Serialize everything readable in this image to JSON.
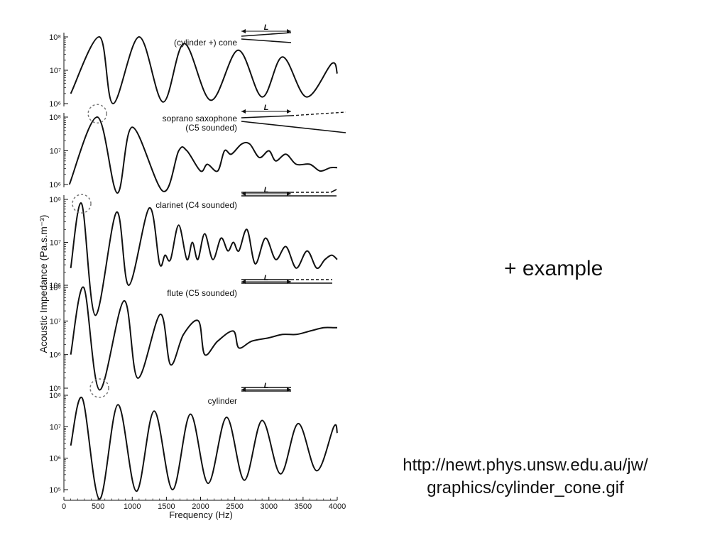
{
  "slide": {
    "example_text": "+ example",
    "url_line1": "http://newt.phys.unsw.edu.au/jw/",
    "url_line2": "graphics/cylinder_cone.gif"
  },
  "colors": {
    "curve": "#111111",
    "circle": "#777777",
    "text": "#111111"
  },
  "chart_data": {
    "type": "line",
    "ylabel": "Acoustic Impedance (Pa.s.m⁻³)",
    "xlabel": "Frequency (Hz)",
    "xlim": [
      0,
      4000
    ],
    "x_ticks": [
      0,
      500,
      1000,
      1500,
      2000,
      2500,
      3000,
      3500,
      4000
    ],
    "y_scale": "log",
    "geometry_label": "L",
    "panels": [
      {
        "label": "(cylinder +) cone",
        "label_lines": [
          "(cylinder +) cone"
        ],
        "ylim_exp": [
          6,
          8
        ],
        "y_tick_labels": [
          "10⁸",
          "10⁷",
          "10⁶"
        ],
        "y_tick_exp": [
          8,
          7,
          6
        ],
        "shape": "cone",
        "circles": [],
        "points": [
          [
            100,
            6.3
          ],
          [
            520,
            8.0
          ],
          [
            720,
            6.0
          ],
          [
            1100,
            8.0
          ],
          [
            1450,
            6.05
          ],
          [
            1760,
            7.8
          ],
          [
            2150,
            6.1
          ],
          [
            2550,
            7.6
          ],
          [
            2900,
            6.2
          ],
          [
            3200,
            7.4
          ],
          [
            3550,
            6.2
          ],
          [
            3920,
            7.2
          ],
          [
            4000,
            6.9
          ]
        ]
      },
      {
        "label": "soprano saxophone (C5 sounded)",
        "label_lines": [
          "soprano saxophone",
          "(C5 sounded)"
        ],
        "ylim_exp": [
          6,
          8
        ],
        "y_tick_labels": [
          "10⁸",
          "10⁷",
          "10⁶"
        ],
        "y_tick_exp": [
          8,
          7,
          6
        ],
        "shape": "sax",
        "circles": [
          [
            490,
            8.1
          ]
        ],
        "points": [
          [
            80,
            6.0
          ],
          [
            490,
            8.0
          ],
          [
            780,
            5.75
          ],
          [
            1000,
            7.7
          ],
          [
            1450,
            5.8
          ],
          [
            1680,
            7.0
          ],
          [
            1800,
            7.0
          ],
          [
            2000,
            6.4
          ],
          [
            2100,
            6.6
          ],
          [
            2250,
            6.4
          ],
          [
            2350,
            7.0
          ],
          [
            2450,
            6.9
          ],
          [
            2600,
            7.2
          ],
          [
            2720,
            7.2
          ],
          [
            2860,
            6.8
          ],
          [
            3000,
            7.0
          ],
          [
            3100,
            6.7
          ],
          [
            3250,
            6.9
          ],
          [
            3400,
            6.6
          ],
          [
            3600,
            6.6
          ],
          [
            3750,
            6.4
          ],
          [
            3900,
            6.5
          ],
          [
            4000,
            6.5
          ]
        ]
      },
      {
        "label": "clarinet (C4 sounded)",
        "label_lines": [
          "clarinet (C4 sounded)"
        ],
        "ylim_exp": [
          6,
          8
        ],
        "y_tick_labels": [
          "10⁸",
          "10⁷",
          "10⁶"
        ],
        "y_tick_exp": [
          8,
          7,
          6
        ],
        "shape": "clarinet",
        "circles": [
          [
            260,
            7.9
          ]
        ],
        "points": [
          [
            100,
            6.4
          ],
          [
            260,
            7.9
          ],
          [
            460,
            5.3
          ],
          [
            770,
            7.7
          ],
          [
            950,
            6.0
          ],
          [
            1250,
            7.8
          ],
          [
            1400,
            6.5
          ],
          [
            1480,
            6.7
          ],
          [
            1560,
            6.6
          ],
          [
            1680,
            7.4
          ],
          [
            1800,
            6.6
          ],
          [
            1880,
            7.0
          ],
          [
            1960,
            6.6
          ],
          [
            2060,
            7.2
          ],
          [
            2180,
            6.6
          ],
          [
            2300,
            7.1
          ],
          [
            2400,
            6.8
          ],
          [
            2480,
            7.0
          ],
          [
            2560,
            6.8
          ],
          [
            2680,
            7.3
          ],
          [
            2800,
            6.5
          ],
          [
            2950,
            7.1
          ],
          [
            3100,
            6.6
          ],
          [
            3250,
            6.9
          ],
          [
            3400,
            6.4
          ],
          [
            3560,
            6.8
          ],
          [
            3700,
            6.4
          ],
          [
            3820,
            6.6
          ],
          [
            3920,
            6.7
          ],
          [
            4000,
            6.6
          ]
        ]
      },
      {
        "label": "flute (C5 sounded)",
        "label_lines": [
          "flute (C5 sounded)"
        ],
        "ylim_exp": [
          5,
          8
        ],
        "y_tick_labels": [
          "10⁸",
          "10⁷",
          "10⁶",
          "10⁵"
        ],
        "y_tick_exp": [
          8,
          7,
          6,
          5
        ],
        "shape": "flute",
        "circles": [
          [
            520,
            5.0
          ]
        ],
        "points": [
          [
            100,
            6.0
          ],
          [
            290,
            8.0
          ],
          [
            520,
            4.95
          ],
          [
            880,
            7.6
          ],
          [
            1080,
            5.3
          ],
          [
            1410,
            7.2
          ],
          [
            1560,
            5.7
          ],
          [
            1750,
            6.6
          ],
          [
            1970,
            7.0
          ],
          [
            2060,
            6.0
          ],
          [
            2250,
            6.4
          ],
          [
            2480,
            6.7
          ],
          [
            2560,
            6.2
          ],
          [
            2750,
            6.4
          ],
          [
            3000,
            6.5
          ],
          [
            3200,
            6.6
          ],
          [
            3400,
            6.6
          ],
          [
            3600,
            6.7
          ],
          [
            3800,
            6.8
          ],
          [
            3950,
            6.8
          ],
          [
            4000,
            6.8
          ]
        ]
      },
      {
        "label": "cylinder",
        "label_lines": [
          "cylinder"
        ],
        "ylim_exp": [
          5,
          8
        ],
        "y_tick_labels": [
          "10⁸",
          "10⁷",
          "10⁶",
          "10⁵"
        ],
        "y_tick_exp": [
          8,
          7,
          6,
          5
        ],
        "shape": "cylinder",
        "circles": [],
        "points": [
          [
            100,
            6.4
          ],
          [
            270,
            7.9
          ],
          [
            520,
            4.7
          ],
          [
            790,
            7.7
          ],
          [
            1060,
            4.95
          ],
          [
            1320,
            7.5
          ],
          [
            1590,
            5.0
          ],
          [
            1850,
            7.4
          ],
          [
            2110,
            5.2
          ],
          [
            2380,
            7.3
          ],
          [
            2640,
            5.3
          ],
          [
            2900,
            7.2
          ],
          [
            3170,
            5.5
          ],
          [
            3430,
            7.1
          ],
          [
            3700,
            5.6
          ],
          [
            3950,
            7.0
          ],
          [
            4000,
            6.8
          ]
        ]
      }
    ]
  }
}
